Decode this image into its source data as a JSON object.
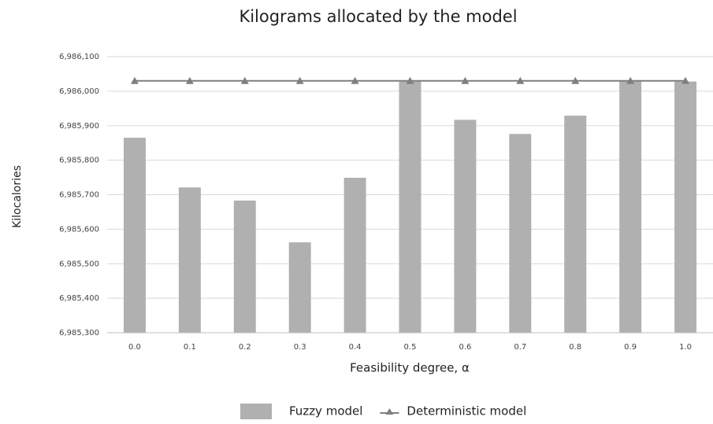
{
  "chart_data": {
    "type": "bar",
    "title": "Kilograms  allocated by the model",
    "x_label": "Feasibility degree, α",
    "y_label": "Kilocalories",
    "categories": [
      "0.0",
      "0.1",
      "0.2",
      "0.3",
      "0.4",
      "0.5",
      "0.6",
      "0.7",
      "0.8",
      "0.9",
      "1.0"
    ],
    "series": [
      {
        "name": "Fuzzy model",
        "type": "bar",
        "color": "#b0b0b0",
        "values": [
          6985865,
          6985721,
          6985683,
          6985562,
          6985749,
          6986028,
          6985917,
          6985876,
          6985929,
          6986030,
          6986028
        ]
      },
      {
        "name": "Deterministic model",
        "type": "line",
        "color": "#7f7f7f",
        "values": [
          6986030,
          6986030,
          6986030,
          6986030,
          6986030,
          6986030,
          6986030,
          6986030,
          6986030,
          6986030,
          6986030
        ]
      }
    ],
    "ylim": [
      6985300,
      6986100
    ],
    "yticks": [
      {
        "value": 6985300,
        "label": "6,985,300"
      },
      {
        "value": 6985400,
        "label": "6,985,400"
      },
      {
        "value": 6985500,
        "label": "6,985,500"
      },
      {
        "value": 6985600,
        "label": "6,985,600"
      },
      {
        "value": 6985700,
        "label": "6,985,700"
      },
      {
        "value": 6985800,
        "label": "6,985,800"
      },
      {
        "value": 6985900,
        "label": "6,985,900"
      },
      {
        "value": 6986000,
        "label": "6,986,000"
      },
      {
        "value": 6986100,
        "label": "6,986,100"
      }
    ],
    "grid": true,
    "legend": "bottom"
  }
}
